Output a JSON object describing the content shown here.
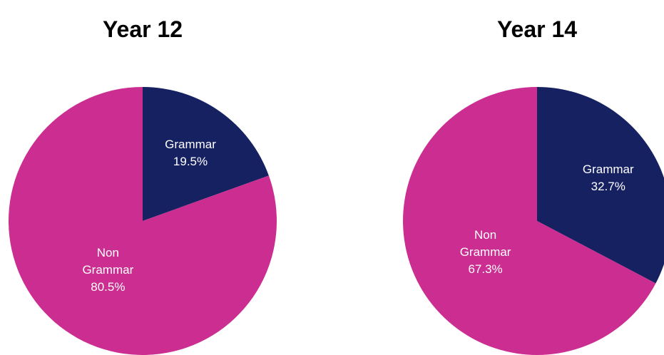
{
  "chart_data": [
    {
      "type": "pie",
      "title": "Year 12",
      "categories": [
        "Grammar",
        "Non Grammar"
      ],
      "values": [
        19.5,
        80.5
      ],
      "value_labels": [
        "19.5%",
        "80.5%"
      ],
      "colors": [
        "#162162",
        "#cc2d91"
      ]
    },
    {
      "type": "pie",
      "title": "Year 14",
      "categories": [
        "Grammar",
        "Non Grammar"
      ],
      "values": [
        32.7,
        67.3
      ],
      "value_labels": [
        "32.7%",
        "67.3%"
      ],
      "colors": [
        "#162162",
        "#cc2d91"
      ]
    }
  ]
}
